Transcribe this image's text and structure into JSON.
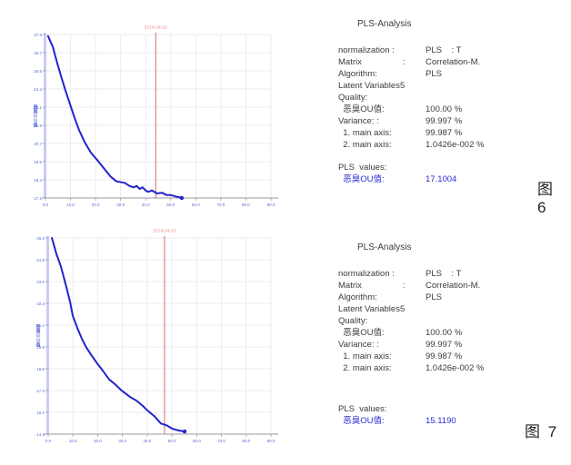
{
  "figures": [
    {
      "caption": "图 6",
      "analysis": {
        "title": "PLS-Analysis",
        "rows": [
          {
            "label": "normalization :",
            "value": "PLS    : T"
          },
          {
            "label": "Matrix                 :",
            "value": "Correlation-M."
          },
          {
            "label": "Algorithm:",
            "value": "PLS"
          },
          {
            "label": "Latent Variables5",
            "value": ""
          },
          {
            "label": "Quality:",
            "value": ""
          },
          {
            "label": "  恶臭OU值:",
            "value": "100.00 %"
          },
          {
            "label": "Variance: :",
            "value": "99.997 %"
          },
          {
            "label": "  1. main axis:",
            "value": "99.987 %"
          },
          {
            "label": "  2. main axis:",
            "value": "1.0426e-002 %"
          }
        ],
        "pls_values_label": "PLS  values:",
        "pls_value_name": "  恶臭OU值:",
        "pls_value": "17.1004"
      }
    },
    {
      "caption": "图 7",
      "analysis": {
        "title": "PLS-Analysis",
        "rows": [
          {
            "label": "normalization :",
            "value": "PLS    : T"
          },
          {
            "label": "Matrix                 :",
            "value": "Correlation-M."
          },
          {
            "label": "Algorithm:",
            "value": "PLS"
          },
          {
            "label": "Latent Variables5",
            "value": ""
          },
          {
            "label": "Quality:",
            "value": ""
          },
          {
            "label": "  恶臭OU值:",
            "value": "100.00 %"
          },
          {
            "label": "Variance: :",
            "value": "99.997 %"
          },
          {
            "label": "  1. main axis:",
            "value": "99.987 %"
          },
          {
            "label": "  2. main axis:",
            "value": "1.0426e-002 %"
          }
        ],
        "pls_values_label": "PLS  values:",
        "pls_value_name": "  恶臭OU值:",
        "pls_value": "15.1190"
      }
    }
  ],
  "chart_data": [
    {
      "type": "line",
      "title": "",
      "ylabel": "恶臭OU值",
      "xlabel": "",
      "annotation": "2014-04-02",
      "x_ticks": [
        "0.0",
        "10.0",
        "20.0",
        "30.0",
        "40.0",
        "50.0",
        "60.0",
        "70.0",
        "80.0",
        "90.0"
      ],
      "y_ticks": [
        "27.9",
        "26.7",
        "25.5",
        "24.3",
        "23.1",
        "21.9",
        "20.7",
        "19.5",
        "18.3",
        "17.1"
      ],
      "xlim": [
        0,
        90
      ],
      "ylim": [
        17.1,
        27.9
      ],
      "marker_x": 44,
      "grid": true,
      "points": [
        [
          1,
          27.8
        ],
        [
          2.9,
          27.1
        ],
        [
          4.7,
          26.0
        ],
        [
          6.5,
          25.0
        ],
        [
          8,
          24.2
        ],
        [
          9.8,
          23.3
        ],
        [
          11.6,
          22.4
        ],
        [
          13.4,
          21.6
        ],
        [
          15.6,
          20.8
        ],
        [
          18.1,
          20.1
        ],
        [
          20.7,
          19.6
        ],
        [
          23.6,
          19.0
        ],
        [
          26.1,
          18.5
        ],
        [
          28.3,
          18.2
        ],
        [
          31.6,
          18.1
        ],
        [
          33.5,
          17.9
        ],
        [
          35.2,
          17.8
        ],
        [
          36.4,
          17.9
        ],
        [
          37.6,
          17.7
        ],
        [
          38.8,
          17.8
        ],
        [
          40,
          17.6
        ],
        [
          41,
          17.5
        ],
        [
          42.5,
          17.6
        ],
        [
          44.6,
          17.4
        ],
        [
          46.5,
          17.45
        ],
        [
          48.3,
          17.3
        ],
        [
          50,
          17.3
        ],
        [
          51.9,
          17.2
        ],
        [
          53.5,
          17.15
        ],
        [
          54.4,
          17.1
        ]
      ],
      "series_color": "#2323cd",
      "grid_color": "#ebebf3",
      "axis_color": "#999999",
      "axis_band_color": "#c9cdf4",
      "tick_color": "#5868d6",
      "marker_color": "#d96a6a",
      "annotation_color": "#f09c9c"
    },
    {
      "type": "line",
      "title": "",
      "ylabel": "恶臭OU值",
      "xlabel": "",
      "annotation": "2014-04-02",
      "x_ticks": [
        "0.0",
        "10.0",
        "20.0",
        "30.0",
        "40.0",
        "50.0",
        "60.0",
        "70.0",
        "80.0",
        "90.0"
      ],
      "y_ticks": [
        "26.0",
        "24.8",
        "23.5",
        "22.3",
        "21.1",
        "19.8",
        "18.6",
        "17.3",
        "16.1",
        "14.9"
      ],
      "xlim": [
        0,
        90
      ],
      "ylim": [
        14.9,
        26.0
      ],
      "marker_x": 47,
      "grid": true,
      "points": [
        [
          1.5,
          26.0
        ],
        [
          3.3,
          25.1
        ],
        [
          5.1,
          24.4
        ],
        [
          7,
          23.4
        ],
        [
          8.8,
          22.4
        ],
        [
          9.9,
          21.6
        ],
        [
          11.8,
          20.9
        ],
        [
          13.6,
          20.3
        ],
        [
          15.4,
          19.8
        ],
        [
          17.3,
          19.4
        ],
        [
          19.8,
          18.9
        ],
        [
          22,
          18.5
        ],
        [
          24.6,
          18.0
        ],
        [
          27.2,
          17.7
        ],
        [
          29.4,
          17.4
        ],
        [
          33.1,
          17.0
        ],
        [
          35.6,
          16.8
        ],
        [
          38.2,
          16.5
        ],
        [
          40.4,
          16.2
        ],
        [
          43,
          15.9
        ],
        [
          45.5,
          15.5
        ],
        [
          47.8,
          15.4
        ],
        [
          50.3,
          15.2
        ],
        [
          52.9,
          15.1
        ],
        [
          55.1,
          15.05
        ]
      ],
      "series_color": "#2323cd",
      "grid_color": "#ebebf3",
      "axis_color": "#999999",
      "axis_band_color": "#c9cdf4",
      "tick_color": "#5868d6",
      "marker_color": "#d96a6a",
      "annotation_color": "#f09c9c"
    }
  ],
  "colors": {
    "curve_blue": "#2323cd",
    "value_blue": "#2b2bd5",
    "marker_red": "#d96a6a",
    "annotation_pink": "#f09c9c",
    "body_text": "#3c3c3c"
  }
}
